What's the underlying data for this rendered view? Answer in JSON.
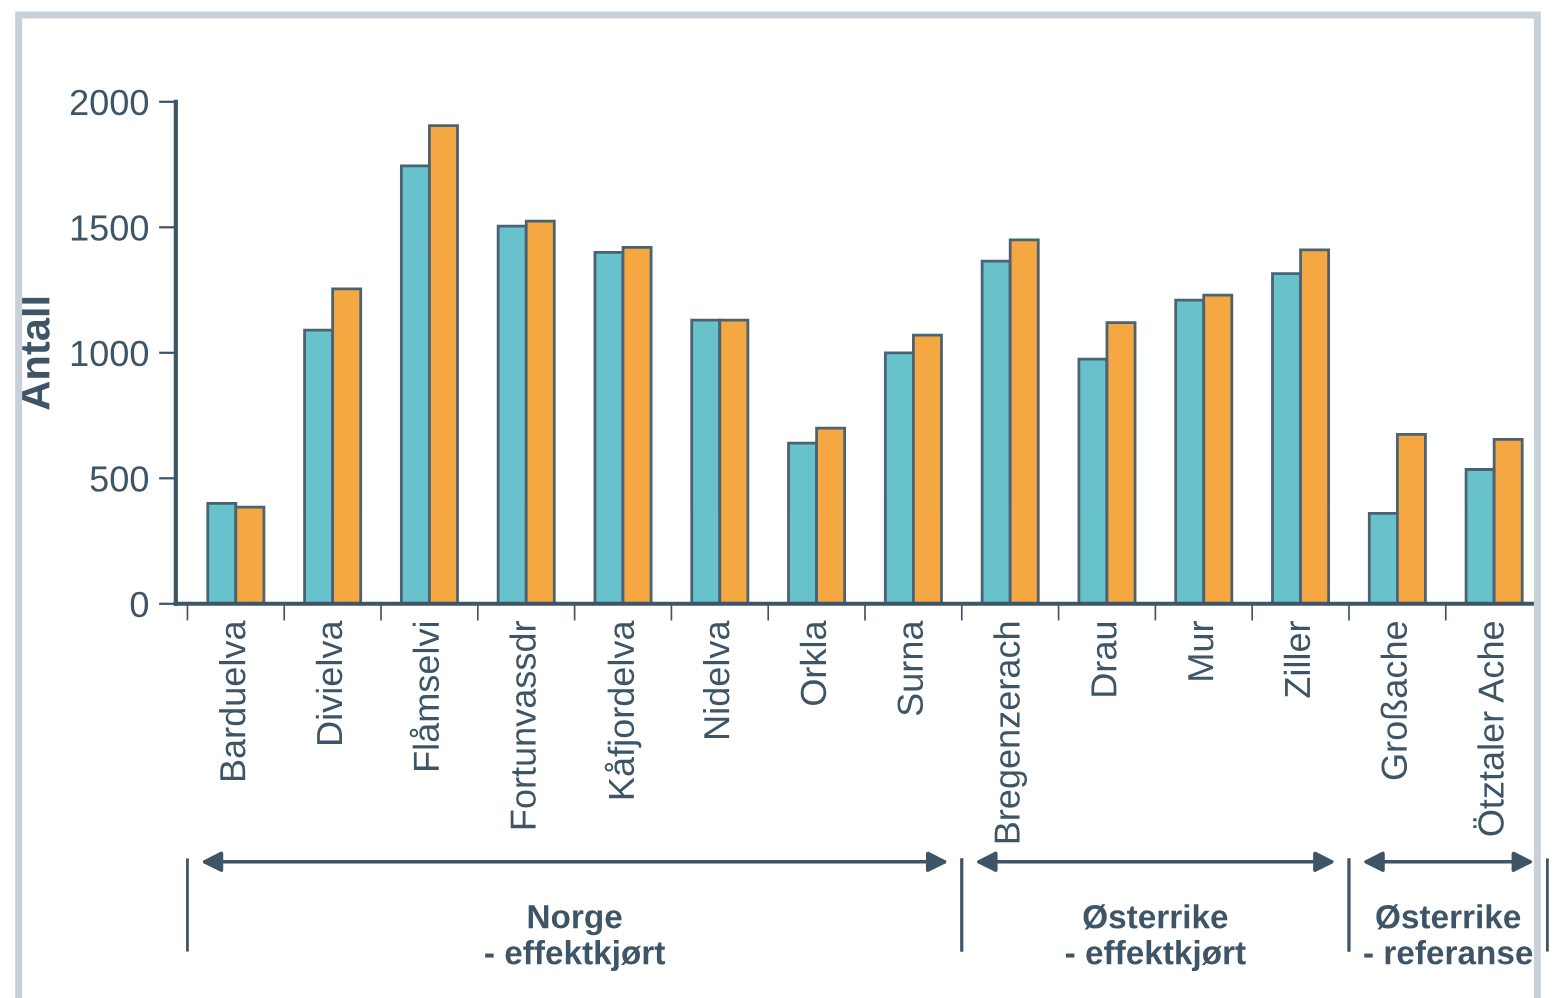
{
  "chart_data": {
    "type": "bar",
    "ylabel": "Antall",
    "categories": [
      "Barduelva",
      "Divielva",
      "Flåmselvi",
      "Fortunvassdr",
      "Kåfjordelva",
      "Nidelva",
      "Orkla",
      "Surna",
      "Bregenzerach",
      "Drau",
      "Mur",
      "Ziller",
      "Großache",
      "Ötztaler Ache"
    ],
    "series": [
      {
        "color": "#67c2cc",
        "values": [
          400,
          1090,
          1745,
          1505,
          1400,
          1130,
          640,
          1000,
          1365,
          975,
          1210,
          1315,
          360,
          535
        ]
      },
      {
        "color": "#f5a742",
        "values": [
          385,
          1255,
          1905,
          1525,
          1420,
          1130,
          700,
          1070,
          1450,
          1120,
          1230,
          1410,
          675,
          655
        ]
      }
    ],
    "ylim": [
      0,
      2000
    ],
    "yticks": [
      0,
      500,
      1000,
      1500,
      2000
    ],
    "grid": false,
    "annotations": [
      "Norge\n- effektkjørt",
      "Østerrike\n- effektkjørt",
      "Østerrike\n- referanse"
    ]
  }
}
